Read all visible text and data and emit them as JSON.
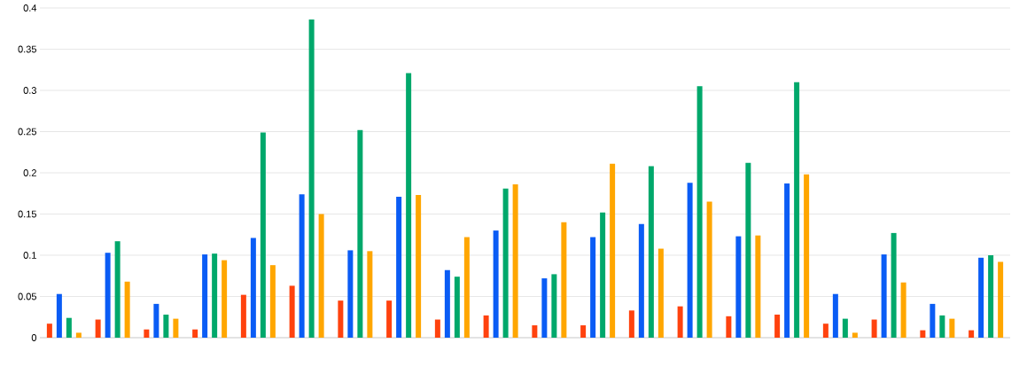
{
  "chart_data": {
    "type": "bar",
    "categories": [
      null,
      null,
      null,
      null,
      null,
      null,
      null,
      null,
      null,
      null,
      null,
      null,
      null,
      null,
      null,
      null,
      null,
      null,
      null,
      null
    ],
    "series": [
      {
        "color": "#ff420e",
        "values": [
          0.017,
          0.022,
          0.01,
          0.01,
          0.052,
          0.063,
          0.045,
          0.045,
          0.022,
          0.027,
          0.015,
          0.015,
          0.033,
          0.038,
          0.026,
          0.028,
          0.017,
          0.022,
          0.009,
          0.009
        ]
      },
      {
        "color": "#0a5cf5",
        "values": [
          0.053,
          0.103,
          0.041,
          0.101,
          0.121,
          0.174,
          0.106,
          0.171,
          0.082,
          0.13,
          0.072,
          0.122,
          0.138,
          0.188,
          0.123,
          0.187,
          0.053,
          0.101,
          0.041,
          0.097
        ]
      },
      {
        "color": "#00a86b",
        "values": [
          0.024,
          0.117,
          0.028,
          0.102,
          0.249,
          0.386,
          0.252,
          0.321,
          0.074,
          0.181,
          0.077,
          0.152,
          0.208,
          0.305,
          0.212,
          0.31,
          0.023,
          0.127,
          0.027,
          0.1
        ]
      },
      {
        "color": "#ffa600",
        "values": [
          0.006,
          0.068,
          0.023,
          0.094,
          0.088,
          0.15,
          0.105,
          0.173,
          0.122,
          0.186,
          0.14,
          0.211,
          0.108,
          0.165,
          0.124,
          0.198,
          0.006,
          0.067,
          0.023,
          0.092
        ]
      }
    ],
    "ylim": [
      0,
      0.4
    ],
    "yticks": [
      0,
      0.05,
      0.1,
      0.15,
      0.2,
      0.25,
      0.3,
      0.35,
      0.4
    ],
    "grid": "y",
    "tick_labels": "y"
  }
}
